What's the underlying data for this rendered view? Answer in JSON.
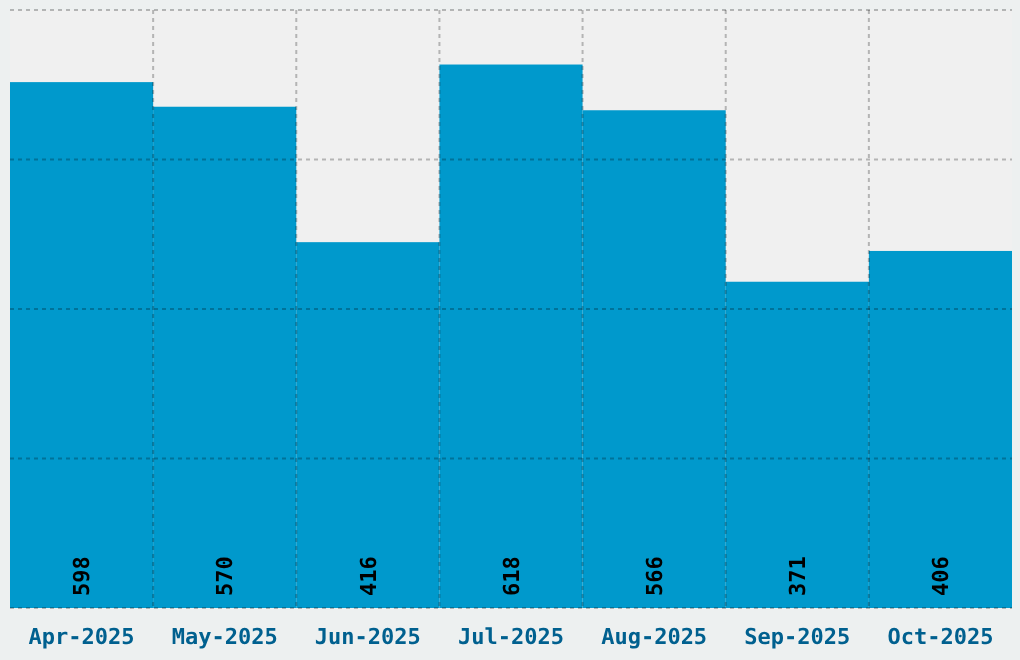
{
  "chart_data": {
    "type": "bar",
    "categories": [
      "Apr-2025",
      "May-2025",
      "Jun-2025",
      "Jul-2025",
      "Aug-2025",
      "Sep-2025",
      "Oct-2025"
    ],
    "values": [
      598,
      570,
      416,
      618,
      566,
      371,
      406
    ],
    "color": "#0099cc",
    "ylim": [
      0,
      680
    ],
    "yticks": [
      {
        "value": 0,
        "label": null
      },
      {
        "value": 170,
        "label": null
      },
      {
        "value": 340,
        "label": null
      },
      {
        "value": 510,
        "label": null
      },
      {
        "value": 680,
        "label": null
      }
    ],
    "tick_labels": "x",
    "grid": true,
    "data_labels": true
  }
}
